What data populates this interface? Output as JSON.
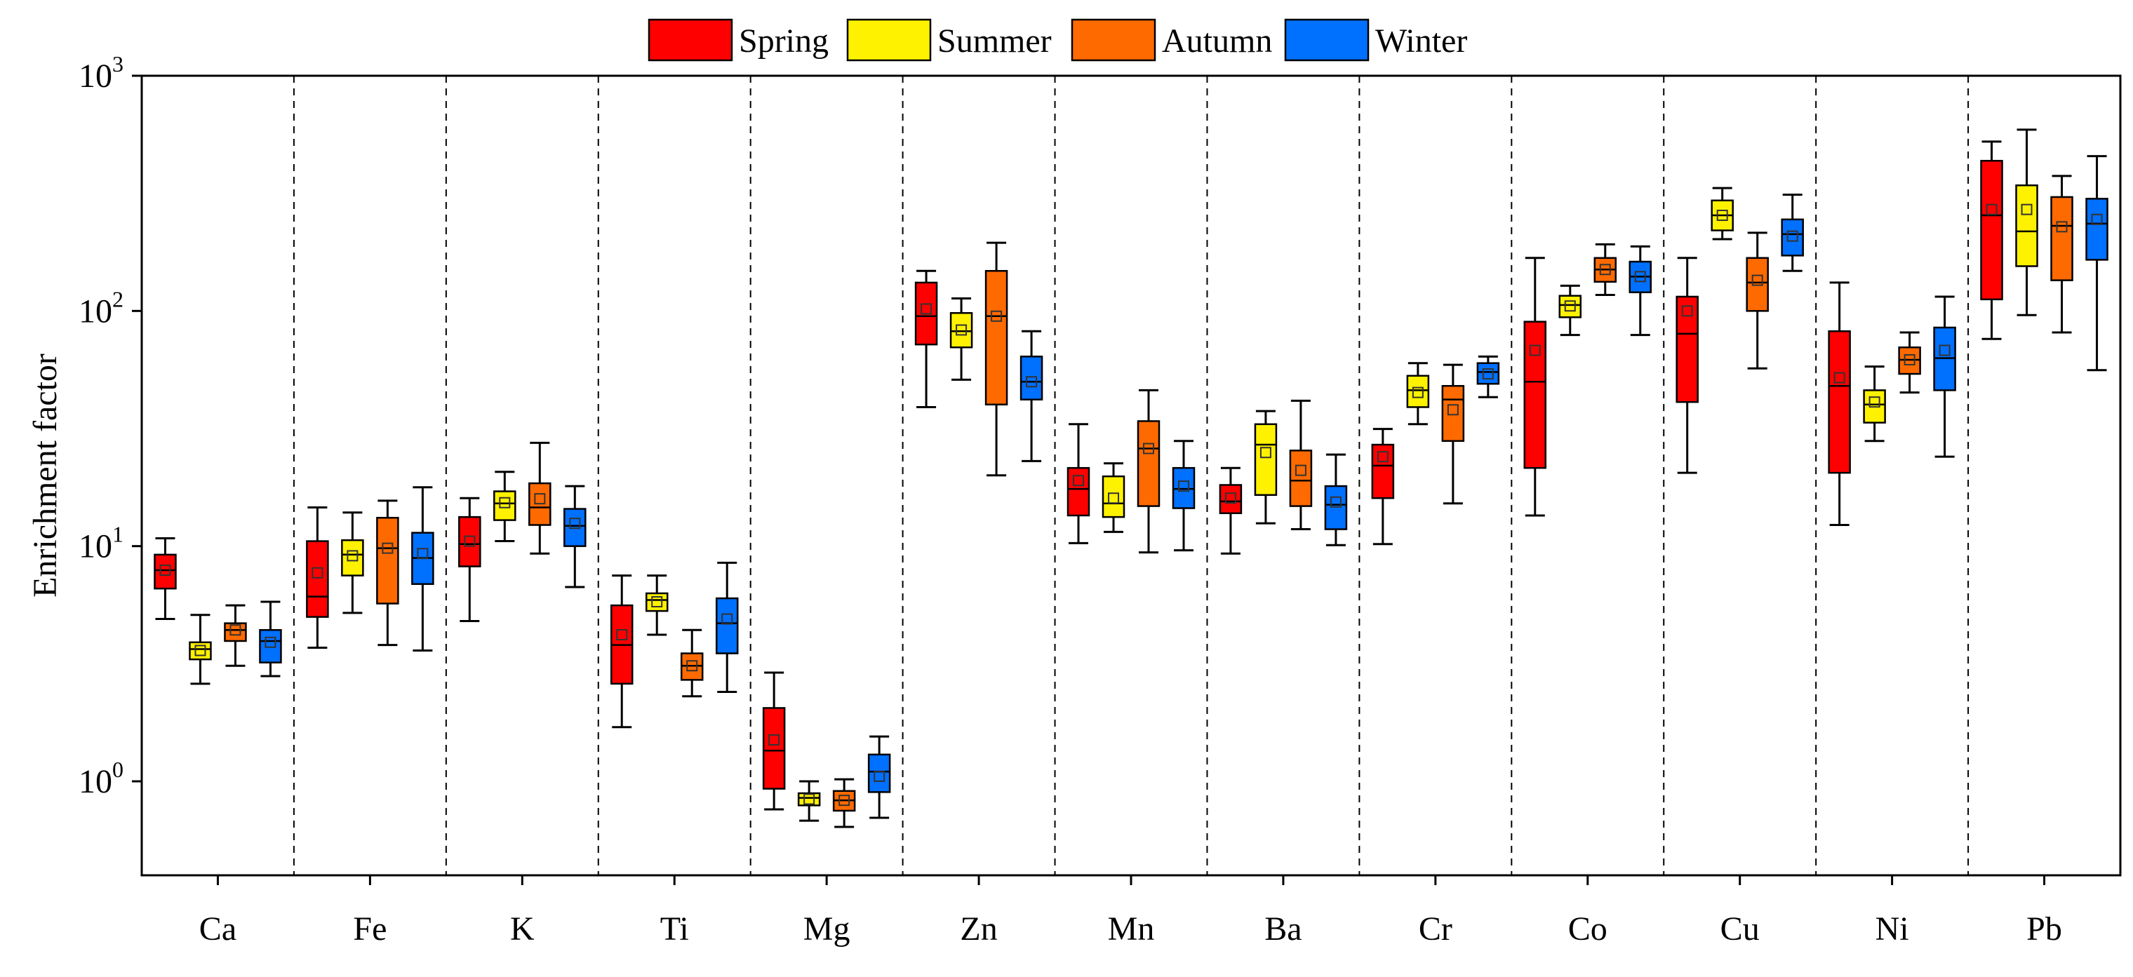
{
  "chart_data": {
    "type": "box",
    "ylabel": "Enrichment factor",
    "xlabel": "",
    "yscale": "log",
    "ylim": [
      0.4,
      1000
    ],
    "yticks": [
      {
        "value": 1,
        "base": "10",
        "exp": "0"
      },
      {
        "value": 10,
        "base": "10",
        "exp": "1"
      },
      {
        "value": 100,
        "base": "10",
        "exp": "2"
      },
      {
        "value": 1000,
        "base": "10",
        "exp": "3"
      }
    ],
    "legend_position": "top-center",
    "categories": [
      "Ca",
      "Fe",
      "K",
      "Ti",
      "Mg",
      "Zn",
      "Mn",
      "Ba",
      "Cr",
      "Co",
      "Cu",
      "Ni",
      "Pb"
    ],
    "series": [
      {
        "name": "Spring",
        "color": "#FF0000",
        "boxes": [
          {
            "min": 4.9,
            "q1": 6.6,
            "median": 7.9,
            "q3": 9.2,
            "max": 10.8,
            "mean": 7.9
          },
          {
            "min": 3.7,
            "q1": 5.0,
            "median": 6.1,
            "q3": 10.5,
            "max": 14.6,
            "mean": 7.7
          },
          {
            "min": 4.8,
            "q1": 8.2,
            "median": 10.2,
            "q3": 13.3,
            "max": 16.0,
            "mean": 10.5
          },
          {
            "min": 1.7,
            "q1": 2.6,
            "median": 3.8,
            "q3": 5.6,
            "max": 7.5,
            "mean": 4.2
          },
          {
            "min": 0.76,
            "q1": 0.93,
            "median": 1.35,
            "q3": 2.05,
            "max": 2.9,
            "mean": 1.5
          },
          {
            "min": 39,
            "q1": 72,
            "median": 95,
            "q3": 132,
            "max": 148,
            "mean": 102
          },
          {
            "min": 10.3,
            "q1": 13.5,
            "median": 17.5,
            "q3": 21.5,
            "max": 33,
            "mean": 19
          },
          {
            "min": 9.3,
            "q1": 13.8,
            "median": 15.5,
            "q3": 18.2,
            "max": 21.5,
            "mean": 16
          },
          {
            "min": 10.2,
            "q1": 16,
            "median": 22,
            "q3": 27,
            "max": 31.5,
            "mean": 24
          },
          {
            "min": 13.5,
            "q1": 21.5,
            "median": 50,
            "q3": 90,
            "max": 168,
            "mean": 68
          },
          {
            "min": 20.5,
            "q1": 41,
            "median": 80,
            "q3": 115,
            "max": 168,
            "mean": 100
          },
          {
            "min": 12.3,
            "q1": 20.5,
            "median": 48,
            "q3": 82,
            "max": 132,
            "mean": 52
          },
          {
            "min": 76,
            "q1": 112,
            "median": 255,
            "q3": 435,
            "max": 525,
            "mean": 270
          }
        ]
      },
      {
        "name": "Summer",
        "color": "#FFF200",
        "boxes": [
          {
            "min": 2.6,
            "q1": 3.3,
            "median": 3.65,
            "q3": 3.9,
            "max": 5.1,
            "mean": 3.6
          },
          {
            "min": 5.2,
            "q1": 7.5,
            "median": 9.2,
            "q3": 10.6,
            "max": 13.9,
            "mean": 9.1
          },
          {
            "min": 10.5,
            "q1": 12.9,
            "median": 15.2,
            "q3": 17.1,
            "max": 20.7,
            "mean": 15.3
          },
          {
            "min": 4.2,
            "q1": 5.3,
            "median": 5.9,
            "q3": 6.3,
            "max": 7.5,
            "mean": 5.8
          },
          {
            "min": 0.68,
            "q1": 0.79,
            "median": 0.85,
            "q3": 0.89,
            "max": 1.0,
            "mean": 0.84
          },
          {
            "min": 51,
            "q1": 70,
            "median": 82,
            "q3": 98,
            "max": 113,
            "mean": 83
          },
          {
            "min": 11.5,
            "q1": 13.3,
            "median": 15.2,
            "q3": 19.8,
            "max": 22.5,
            "mean": 16
          },
          {
            "min": 12.5,
            "q1": 16.5,
            "median": 27,
            "q3": 33,
            "max": 37.5,
            "mean": 25
          },
          {
            "min": 33,
            "q1": 39,
            "median": 46,
            "q3": 53,
            "max": 60,
            "mean": 45
          },
          {
            "min": 79,
            "q1": 94,
            "median": 106,
            "q3": 116,
            "max": 128,
            "mean": 105
          },
          {
            "min": 202,
            "q1": 220,
            "median": 255,
            "q3": 295,
            "max": 333,
            "mean": 255
          },
          {
            "min": 28,
            "q1": 33.5,
            "median": 40,
            "q3": 46,
            "max": 58,
            "mean": 41
          },
          {
            "min": 96,
            "q1": 155,
            "median": 218,
            "q3": 342,
            "max": 590,
            "mean": 270
          }
        ]
      },
      {
        "name": "Autumn",
        "color": "#FF6A00",
        "boxes": [
          {
            "min": 3.1,
            "q1": 3.95,
            "median": 4.4,
            "q3": 4.7,
            "max": 5.6,
            "mean": 4.4
          },
          {
            "min": 3.8,
            "q1": 5.7,
            "median": 9.8,
            "q3": 13.2,
            "max": 15.6,
            "mean": 9.8
          },
          {
            "min": 9.3,
            "q1": 12.3,
            "median": 14.6,
            "q3": 18.5,
            "max": 27.5,
            "mean": 15.9
          },
          {
            "min": 2.3,
            "q1": 2.7,
            "median": 3.1,
            "q3": 3.5,
            "max": 4.4,
            "mean": 3.1
          },
          {
            "min": 0.64,
            "q1": 0.75,
            "median": 0.83,
            "q3": 0.91,
            "max": 1.02,
            "mean": 0.83
          },
          {
            "min": 20,
            "q1": 40,
            "median": 95,
            "q3": 148,
            "max": 195,
            "mean": 95
          },
          {
            "min": 9.4,
            "q1": 14.8,
            "median": 26,
            "q3": 34,
            "max": 46,
            "mean": 26
          },
          {
            "min": 11.8,
            "q1": 14.8,
            "median": 19,
            "q3": 25.5,
            "max": 41.5,
            "mean": 21
          },
          {
            "min": 15.2,
            "q1": 28,
            "median": 42,
            "q3": 48,
            "max": 59,
            "mean": 38
          },
          {
            "min": 117,
            "q1": 133,
            "median": 150,
            "q3": 168,
            "max": 192,
            "mean": 150
          },
          {
            "min": 57,
            "q1": 100,
            "median": 132,
            "q3": 168,
            "max": 215,
            "mean": 135
          },
          {
            "min": 45,
            "q1": 54,
            "median": 62,
            "q3": 70,
            "max": 81,
            "mean": 62
          },
          {
            "min": 81,
            "q1": 135,
            "median": 230,
            "q3": 305,
            "max": 375,
            "mean": 228
          }
        ]
      },
      {
        "name": "Winter",
        "color": "#0070FF",
        "boxes": [
          {
            "min": 2.8,
            "q1": 3.2,
            "median": 3.95,
            "q3": 4.4,
            "max": 5.8,
            "mean": 3.9
          },
          {
            "min": 3.6,
            "q1": 6.9,
            "median": 8.9,
            "q3": 11.4,
            "max": 17.8,
            "mean": 9.3
          },
          {
            "min": 6.7,
            "q1": 10.0,
            "median": 12.2,
            "q3": 14.4,
            "max": 18.0,
            "mean": 12.5
          },
          {
            "min": 2.4,
            "q1": 3.5,
            "median": 4.7,
            "q3": 6.0,
            "max": 8.5,
            "mean": 4.9
          },
          {
            "min": 0.7,
            "q1": 0.9,
            "median": 1.1,
            "q3": 1.3,
            "max": 1.55,
            "mean": 1.05
          },
          {
            "min": 23,
            "q1": 42,
            "median": 50,
            "q3": 64,
            "max": 82,
            "mean": 50
          },
          {
            "min": 9.6,
            "q1": 14.5,
            "median": 17.5,
            "q3": 21.5,
            "max": 28,
            "mean": 18
          },
          {
            "min": 10.1,
            "q1": 11.8,
            "median": 15,
            "q3": 18,
            "max": 24.5,
            "mean": 15.4
          },
          {
            "min": 43,
            "q1": 49,
            "median": 55,
            "q3": 60,
            "max": 64,
            "mean": 54
          },
          {
            "min": 79,
            "q1": 120,
            "median": 140,
            "q3": 162,
            "max": 188,
            "mean": 140
          },
          {
            "min": 148,
            "q1": 172,
            "median": 212,
            "q3": 245,
            "max": 312,
            "mean": 208
          },
          {
            "min": 24,
            "q1": 46,
            "median": 63,
            "q3": 85,
            "max": 115,
            "mean": 68
          },
          {
            "min": 56,
            "q1": 165,
            "median": 235,
            "q3": 300,
            "max": 455,
            "mean": 245
          }
        ]
      }
    ]
  }
}
